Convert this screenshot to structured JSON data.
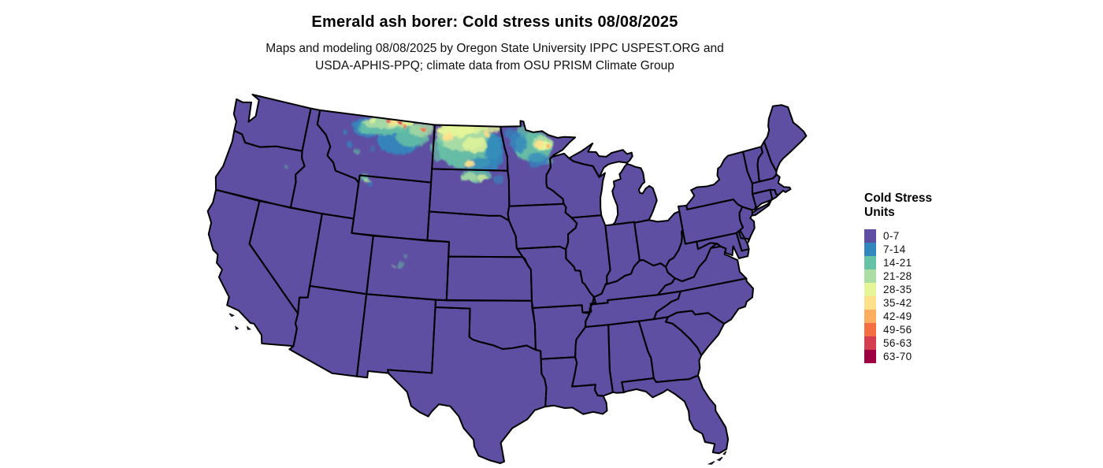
{
  "title": "Emerald ash borer: Cold stress units 08/08/2025",
  "subtitle_line1": "Maps and modeling 08/08/2025 by Oregon State University IPPC USPEST.ORG and",
  "subtitle_line2": "USDA-APHIS-PPQ; climate data from OSU PRISM Climate Group",
  "legend": {
    "title_line1": "Cold Stress",
    "title_line2": "Units",
    "entries": [
      {
        "label": "0-7",
        "color": "#5e4fa2"
      },
      {
        "label": "7-14",
        "color": "#3288bd"
      },
      {
        "label": "14-21",
        "color": "#66c2a5"
      },
      {
        "label": "21-28",
        "color": "#abdda4"
      },
      {
        "label": "28-35",
        "color": "#e6f598"
      },
      {
        "label": "35-42",
        "color": "#fee08b"
      },
      {
        "label": "42-49",
        "color": "#fdae61"
      },
      {
        "label": "49-56",
        "color": "#f46d43"
      },
      {
        "label": "56-63",
        "color": "#d53e4f"
      },
      {
        "label": "63-70",
        "color": "#9e0142"
      }
    ]
  },
  "map": {
    "region": "Contiguous United States",
    "base_value_class": "0-7",
    "base_color": "#5e4fa2",
    "border_color": "#000000",
    "background_color": "#ffffff",
    "high_value_areas": "northern Montana, North Dakota, northern South Dakota, northern Minnesota, Yellowstone area"
  }
}
